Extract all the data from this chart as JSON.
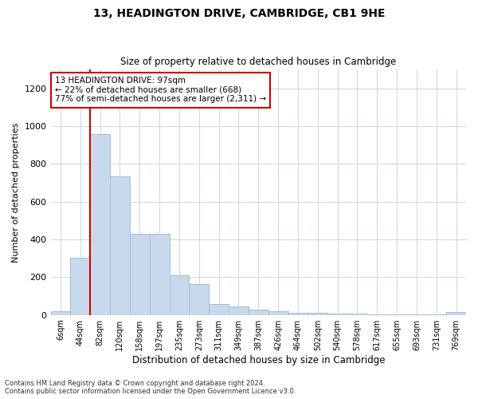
{
  "title": "13, HEADINGTON DRIVE, CAMBRIDGE, CB1 9HE",
  "subtitle": "Size of property relative to detached houses in Cambridge",
  "xlabel": "Distribution of detached houses by size in Cambridge",
  "ylabel": "Number of detached properties",
  "bar_color": "#c9d9ec",
  "bar_edge_color": "#a0bcd8",
  "vline_color": "#cc0000",
  "vline_x_index": 2,
  "annotation_text": "13 HEADINGTON DRIVE: 97sqm\n← 22% of detached houses are smaller (668)\n77% of semi-detached houses are larger (2,311) →",
  "annotation_box_color": "#ffffff",
  "annotation_box_edge": "#cc0000",
  "categories": [
    "6sqm",
    "44sqm",
    "82sqm",
    "120sqm",
    "158sqm",
    "197sqm",
    "235sqm",
    "273sqm",
    "311sqm",
    "349sqm",
    "387sqm",
    "426sqm",
    "464sqm",
    "502sqm",
    "540sqm",
    "578sqm",
    "617sqm",
    "655sqm",
    "693sqm",
    "731sqm",
    "769sqm"
  ],
  "values": [
    20,
    305,
    960,
    735,
    430,
    430,
    210,
    165,
    60,
    45,
    30,
    20,
    10,
    10,
    8,
    8,
    5,
    5,
    4,
    4,
    15
  ],
  "ylim": [
    0,
    1300
  ],
  "yticks": [
    0,
    200,
    400,
    600,
    800,
    1000,
    1200
  ],
  "footnote1": "Contains HM Land Registry data © Crown copyright and database right 2024.",
  "footnote2": "Contains public sector information licensed under the Open Government Licence v3.0.",
  "background_color": "#ffffff",
  "grid_color": "#d0d8e8"
}
